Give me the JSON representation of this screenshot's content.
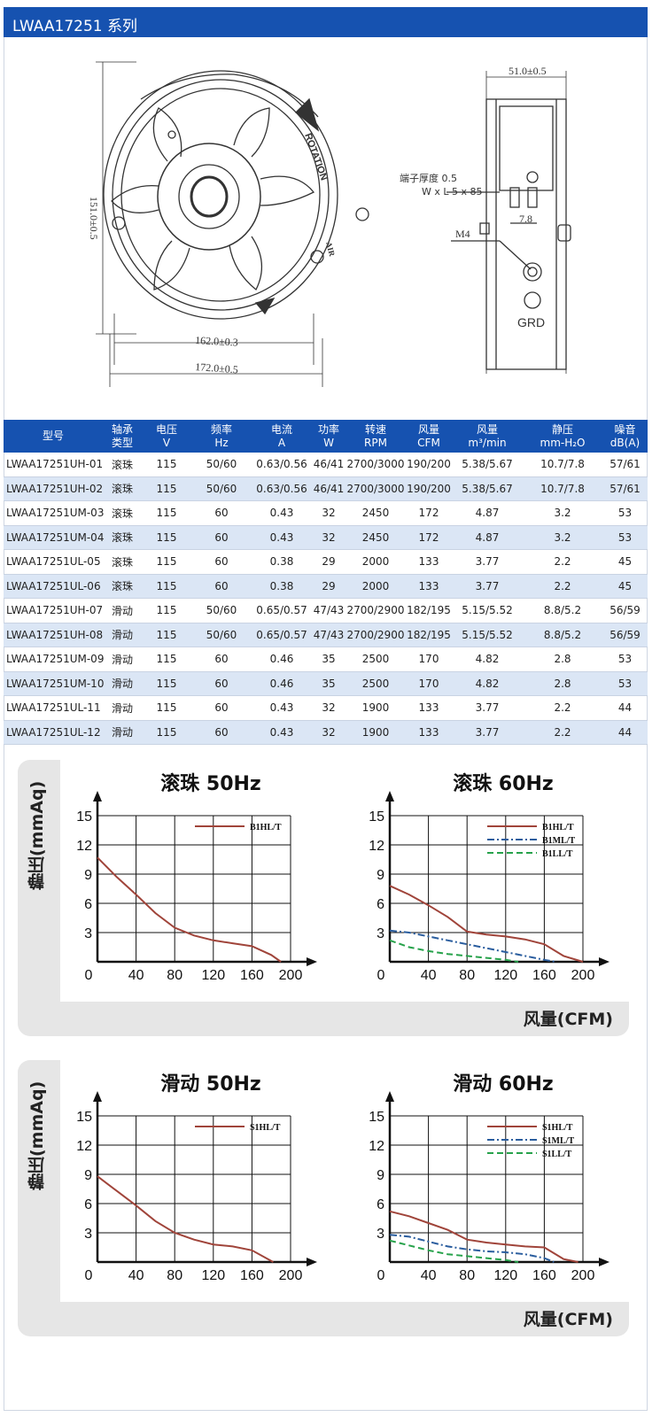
{
  "header": {
    "title": "LWAA17251 系列"
  },
  "drawing": {
    "dims": [
      "151.0±0.5",
      "162.0±0.3",
      "172.0±0.5",
      "51.0±0.5",
      "7.8"
    ],
    "terminal_label": "端子厚度 0.5",
    "terminal_size": "W x L 5 x 85",
    "screw_label": "M4",
    "grd_label": "GRD",
    "rotation_label": "ROTATION",
    "flow_label": "AIR"
  },
  "table": {
    "headers": [
      [
        "型号",
        ""
      ],
      [
        "轴承",
        "类型"
      ],
      [
        "电压",
        "V"
      ],
      [
        "频率",
        "Hz"
      ],
      [
        "电流",
        "A"
      ],
      [
        "功率",
        "W"
      ],
      [
        "转速",
        "RPM"
      ],
      [
        "风量",
        "CFM"
      ],
      [
        "风量",
        "m³/min"
      ],
      [
        "静压",
        "mm-H₂O"
      ],
      [
        "噪音",
        "dB(A)"
      ]
    ],
    "rows": [
      [
        "LWAA17251UH-01",
        "滚珠",
        "115",
        "50/60",
        "0.63/0.56",
        "46/41",
        "2700/3000",
        "190/200",
        "5.38/5.67",
        "10.7/7.8",
        "57/61"
      ],
      [
        "LWAA17251UH-02",
        "滚珠",
        "115",
        "50/60",
        "0.63/0.56",
        "46/41",
        "2700/3000",
        "190/200",
        "5.38/5.67",
        "10.7/7.8",
        "57/61"
      ],
      [
        "LWAA17251UM-03",
        "滚珠",
        "115",
        "60",
        "0.43",
        "32",
        "2450",
        "172",
        "4.87",
        "3.2",
        "53"
      ],
      [
        "LWAA17251UM-04",
        "滚珠",
        "115",
        "60",
        "0.43",
        "32",
        "2450",
        "172",
        "4.87",
        "3.2",
        "53"
      ],
      [
        "LWAA17251UL-05",
        "滚珠",
        "115",
        "60",
        "0.38",
        "29",
        "2000",
        "133",
        "3.77",
        "2.2",
        "45"
      ],
      [
        "LWAA17251UL-06",
        "滚珠",
        "115",
        "60",
        "0.38",
        "29",
        "2000",
        "133",
        "3.77",
        "2.2",
        "45"
      ],
      [
        "LWAA17251UH-07",
        "滑动",
        "115",
        "50/60",
        "0.65/0.57",
        "47/43",
        "2700/2900",
        "182/195",
        "5.15/5.52",
        "8.8/5.2",
        "56/59"
      ],
      [
        "LWAA17251UH-08",
        "滑动",
        "115",
        "50/60",
        "0.65/0.57",
        "47/43",
        "2700/2900",
        "182/195",
        "5.15/5.52",
        "8.8/5.2",
        "56/59"
      ],
      [
        "LWAA17251UM-09",
        "滑动",
        "115",
        "60",
        "0.46",
        "35",
        "2500",
        "170",
        "4.82",
        "2.8",
        "53"
      ],
      [
        "LWAA17251UM-10",
        "滑动",
        "115",
        "60",
        "0.46",
        "35",
        "2500",
        "170",
        "4.82",
        "2.8",
        "53"
      ],
      [
        "LWAA17251UL-11",
        "滑动",
        "115",
        "60",
        "0.43",
        "32",
        "1900",
        "133",
        "3.77",
        "2.2",
        "44"
      ],
      [
        "LWAA17251UL-12",
        "滑动",
        "115",
        "60",
        "0.43",
        "32",
        "1900",
        "133",
        "3.77",
        "2.2",
        "44"
      ]
    ]
  },
  "panels": [
    {
      "ylabel": "静压(mmAq)",
      "xlabel": "风量(CFM)"
    },
    {
      "ylabel": "静压(mmAq)",
      "xlabel": "风量(CFM)"
    }
  ],
  "chart_data": [
    {
      "type": "line",
      "title": "滚珠 50Hz",
      "xlabel": "风量(CFM)",
      "ylabel": "静压(mmAq)",
      "xlim": [
        0,
        200
      ],
      "ylim": [
        0,
        15
      ],
      "xticks": [
        0,
        40,
        80,
        120,
        160,
        200
      ],
      "yticks": [
        3,
        6,
        9,
        12,
        15
      ],
      "grid": true,
      "legend": "top-right",
      "series": [
        {
          "name": "B1HL/T",
          "color": "#a0443a",
          "dash": "",
          "x": [
            0,
            20,
            40,
            60,
            80,
            100,
            120,
            140,
            160,
            180,
            190
          ],
          "y": [
            10.7,
            8.7,
            6.9,
            5.0,
            3.5,
            2.7,
            2.2,
            1.9,
            1.6,
            0.7,
            0
          ]
        }
      ]
    },
    {
      "type": "line",
      "title": "滚珠 60Hz",
      "xlabel": "风量(CFM)",
      "ylabel": "静压(mmAq)",
      "xlim": [
        0,
        200
      ],
      "ylim": [
        0,
        15
      ],
      "xticks": [
        0,
        40,
        80,
        120,
        160,
        200
      ],
      "yticks": [
        3,
        6,
        9,
        12,
        15
      ],
      "grid": true,
      "legend": "top-right",
      "series": [
        {
          "name": "B1HL/T",
          "color": "#a0443a",
          "dash": "",
          "x": [
            0,
            20,
            40,
            60,
            80,
            100,
            120,
            140,
            160,
            180,
            200
          ],
          "y": [
            7.8,
            6.9,
            5.8,
            4.6,
            3.1,
            2.8,
            2.6,
            2.3,
            1.8,
            0.6,
            0
          ]
        },
        {
          "name": "B1ML/T",
          "color": "#2a5d9e",
          "dash": "8,3,2,3",
          "x": [
            0,
            20,
            40,
            60,
            80,
            100,
            120,
            140,
            160,
            172
          ],
          "y": [
            3.2,
            3.0,
            2.6,
            2.2,
            1.8,
            1.4,
            1.0,
            0.6,
            0.2,
            0
          ]
        },
        {
          "name": "B1LL/T",
          "color": "#27a24b",
          "dash": "7,4",
          "x": [
            0,
            20,
            40,
            60,
            80,
            100,
            120,
            133
          ],
          "y": [
            2.2,
            1.5,
            1.1,
            0.8,
            0.6,
            0.4,
            0.2,
            0
          ]
        }
      ]
    },
    {
      "type": "line",
      "title": "滑动 50Hz",
      "xlabel": "风量(CFM)",
      "ylabel": "静压(mmAq)",
      "xlim": [
        0,
        200
      ],
      "ylim": [
        0,
        15
      ],
      "xticks": [
        0,
        40,
        80,
        120,
        160,
        200
      ],
      "yticks": [
        3,
        6,
        9,
        12,
        15
      ],
      "grid": true,
      "legend": "top-right",
      "series": [
        {
          "name": "S1HL/T",
          "color": "#a0443a",
          "dash": "",
          "x": [
            0,
            20,
            40,
            60,
            80,
            100,
            120,
            140,
            160,
            182
          ],
          "y": [
            8.8,
            7.3,
            5.8,
            4.2,
            3.0,
            2.3,
            1.8,
            1.6,
            1.2,
            0
          ]
        }
      ]
    },
    {
      "type": "line",
      "title": "滑动 60Hz",
      "xlabel": "风量(CFM)",
      "ylabel": "静压(mmAq)",
      "xlim": [
        0,
        200
      ],
      "ylim": [
        0,
        15
      ],
      "xticks": [
        0,
        40,
        80,
        120,
        160,
        200
      ],
      "yticks": [
        3,
        6,
        9,
        12,
        15
      ],
      "grid": true,
      "legend": "top-right",
      "series": [
        {
          "name": "S1HL/T",
          "color": "#a0443a",
          "dash": "",
          "x": [
            0,
            20,
            40,
            60,
            80,
            100,
            120,
            140,
            160,
            180,
            195
          ],
          "y": [
            5.2,
            4.7,
            4.0,
            3.3,
            2.3,
            2.0,
            1.8,
            1.6,
            1.5,
            0.3,
            0
          ]
        },
        {
          "name": "S1ML/T",
          "color": "#2a5d9e",
          "dash": "8,3,2,3",
          "x": [
            0,
            20,
            40,
            60,
            80,
            100,
            120,
            140,
            160,
            170
          ],
          "y": [
            2.8,
            2.6,
            2.1,
            1.6,
            1.3,
            1.1,
            1.0,
            0.8,
            0.4,
            0
          ]
        },
        {
          "name": "S1LL/T",
          "color": "#27a24b",
          "dash": "7,4",
          "x": [
            0,
            20,
            40,
            60,
            80,
            100,
            120,
            133
          ],
          "y": [
            2.2,
            1.7,
            1.2,
            0.8,
            0.6,
            0.4,
            0.2,
            0
          ]
        }
      ]
    }
  ]
}
